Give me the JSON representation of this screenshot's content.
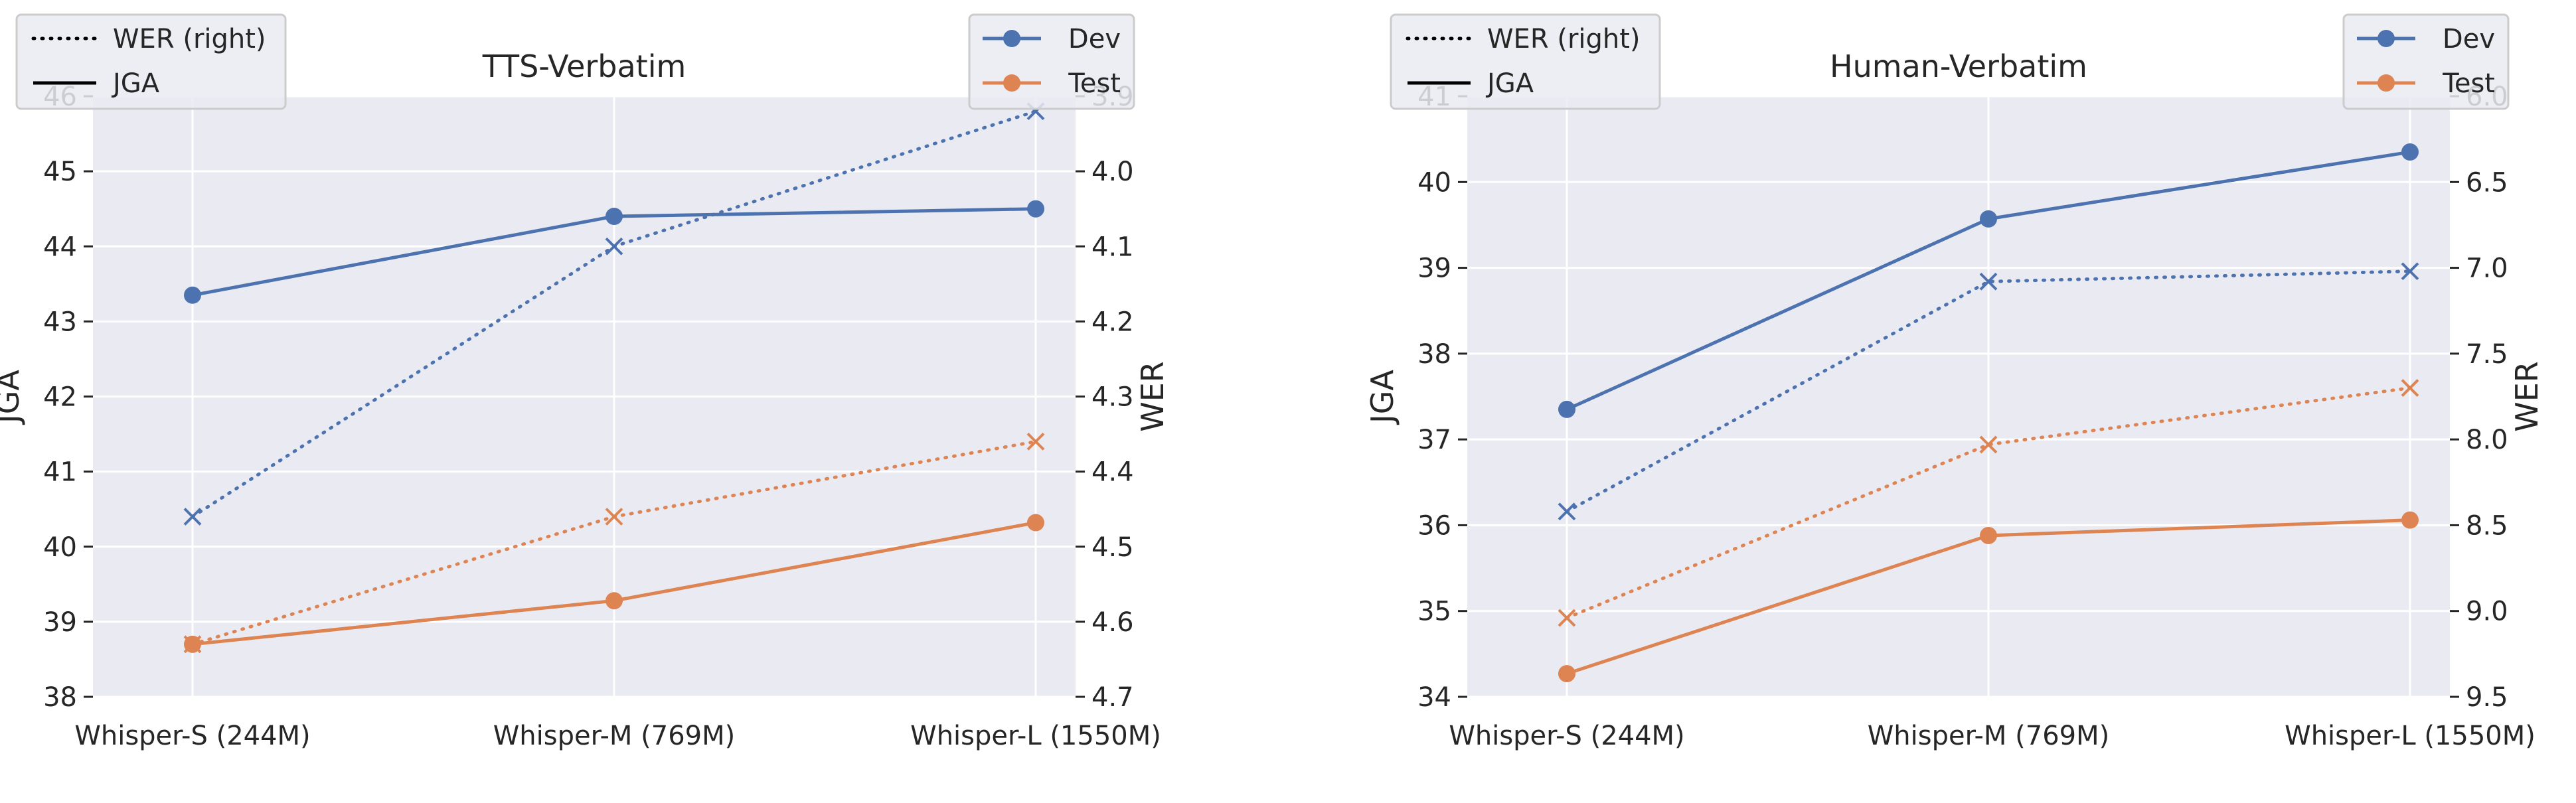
{
  "chart_data": [
    {
      "type": "line",
      "title": "TTS-Verbatim",
      "categories": [
        "Whisper-S (244M)",
        "Whisper-M (769M)",
        "Whisper-L (1550M)"
      ],
      "ylabel": "JGA",
      "y2label": "WER",
      "ylim": [
        38,
        46
      ],
      "yticks": [
        "38",
        "39",
        "40",
        "41",
        "42",
        "43",
        "44",
        "45",
        "46"
      ],
      "y2lim": [
        3.9,
        4.7
      ],
      "y2ticks": [
        "3.9",
        "4.0",
        "4.1",
        "4.2",
        "4.3",
        "4.4",
        "4.5",
        "4.6",
        "4.7"
      ],
      "y2_inverted": true,
      "series": [
        {
          "name": "Dev",
          "metric": "JGA",
          "axis": "left",
          "color": "#4c72b0",
          "values": [
            43.35,
            44.4,
            44.5
          ]
        },
        {
          "name": "Test",
          "metric": "JGA",
          "axis": "left",
          "color": "#dd8452",
          "values": [
            38.7,
            39.28,
            40.32
          ]
        },
        {
          "name": "Dev",
          "metric": "WER",
          "axis": "right",
          "color": "#4c72b0",
          "values": [
            4.46,
            4.1,
            3.92
          ]
        },
        {
          "name": "Test",
          "metric": "WER",
          "axis": "right",
          "color": "#dd8452",
          "values": [
            4.63,
            4.46,
            4.36
          ]
        }
      ],
      "legend_style": {
        "entries": [
          "WER (right)",
          "JGA"
        ],
        "placement": "upper-left"
      },
      "legend_split": {
        "entries": [
          "Dev",
          "Test"
        ],
        "placement": "upper-right"
      }
    },
    {
      "type": "line",
      "title": "Human-Verbatim",
      "categories": [
        "Whisper-S (244M)",
        "Whisper-M (769M)",
        "Whisper-L (1550M)"
      ],
      "ylabel": "JGA",
      "y2label": "WER",
      "ylim": [
        34,
        41
      ],
      "yticks": [
        "34",
        "35",
        "36",
        "37",
        "38",
        "39",
        "40",
        "41"
      ],
      "y2lim": [
        6.0,
        9.5
      ],
      "y2ticks": [
        "6.0",
        "6.5",
        "7.0",
        "7.5",
        "8.0",
        "8.5",
        "9.0",
        "9.5"
      ],
      "y2_inverted": true,
      "series": [
        {
          "name": "Dev",
          "metric": "JGA",
          "axis": "left",
          "color": "#4c72b0",
          "values": [
            37.35,
            39.57,
            40.35
          ]
        },
        {
          "name": "Test",
          "metric": "JGA",
          "axis": "left",
          "color": "#dd8452",
          "values": [
            34.27,
            35.88,
            36.06
          ]
        },
        {
          "name": "Dev",
          "metric": "WER",
          "axis": "right",
          "color": "#4c72b0",
          "values": [
            8.42,
            7.08,
            7.02
          ]
        },
        {
          "name": "Test",
          "metric": "WER",
          "axis": "right",
          "color": "#dd8452",
          "values": [
            9.04,
            8.03,
            7.7
          ]
        }
      ],
      "legend_style": {
        "entries": [
          "WER (right)",
          "JGA"
        ],
        "placement": "upper-left"
      },
      "legend_split": {
        "entries": [
          "Dev",
          "Test"
        ],
        "placement": "upper-right"
      }
    }
  ]
}
